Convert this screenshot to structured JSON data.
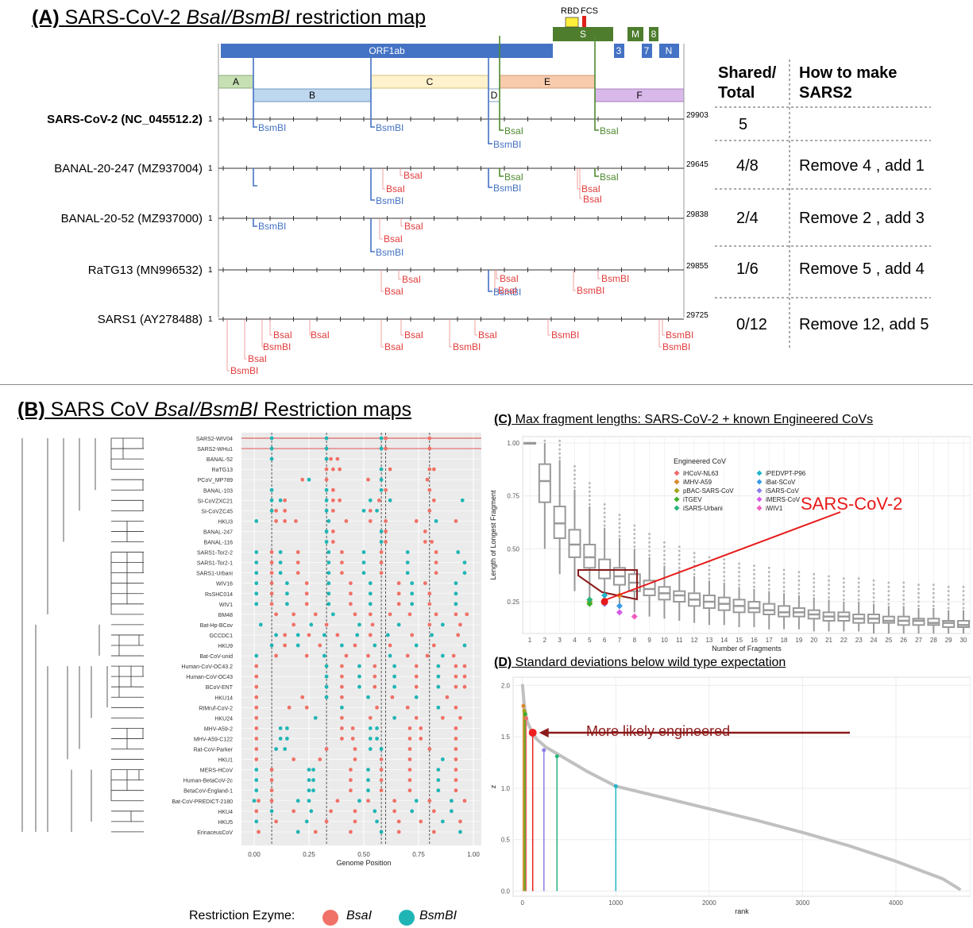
{
  "panel_a": {
    "title_label": "(A)",
    "title_pre": "SARS-CoV-2",
    "title_italic": "BsaI/BsmBI",
    "title_post": "restriction map",
    "genes": {
      "rbd": "RBD",
      "fcs": "FCS",
      "orf1ab": "ORF1ab",
      "s": "S",
      "m": "M",
      "n8": "8",
      "n3": "3",
      "n7": "7",
      "n": "N"
    },
    "fragments": [
      "A",
      "B",
      "C",
      "D",
      "E",
      "F"
    ],
    "genomes": [
      {
        "name": "SARS-CoV-2 (NC_045512.2)",
        "start": "1",
        "end": "29903"
      },
      {
        "name": "BANAL-20-247 (MZ937004)",
        "start": "1",
        "end": "29645"
      },
      {
        "name": "BANAL-20-52 (MZ937000)",
        "start": "1",
        "end": "29838"
      },
      {
        "name": "RaTG13  (MN996532)",
        "start": "1",
        "end": "29855"
      },
      {
        "name": "SARS1  (AY278488)",
        "start": "1",
        "end": "29725"
      }
    ],
    "enzymes": {
      "bsai": "BsaI",
      "bsmbi": "BsmBI"
    },
    "table_header_1": "Shared/ Total",
    "table_header_2": "How to make SARS2",
    "table_rows": [
      {
        "shared": "5",
        "how": ""
      },
      {
        "shared": "4/8",
        "how": "Remove 4 , add 1"
      },
      {
        "shared": "2/4",
        "how": "Remove 2 , add 3"
      },
      {
        "shared": "1/6",
        "how": "Remove 5 , add 4"
      },
      {
        "shared": "0/12",
        "how": "Remove 12, add 5"
      }
    ]
  },
  "panel_b": {
    "title_label": "(B)",
    "title_pre": "SARS CoV",
    "title_italic": "BsaI/BsmBI",
    "title_post": "Restriction maps",
    "taxa": [
      "SARS2-WIV04",
      "SARS2-WHu1",
      "BANAL-52",
      "RaTG13",
      "PCoV_MP789",
      "BANAL-103",
      "SI-CoVZXC21",
      "SI-CoVZC45",
      "HKU3",
      "BANAL-247",
      "BANAL-116",
      "SARS1-Tor2-2",
      "SARS1-Tor2-1",
      "SARS1-Urbani",
      "WIV16",
      "RsSHC014",
      "WIV1",
      "BM48",
      "Bat-Hp-BCov",
      "GCCDC1",
      "HKU9",
      "Bat-CoV-unid",
      "Human-CoV-OC43.2",
      "Human-CoV-OC43",
      "BCoV-ENT",
      "HKU14",
      "RtMruf-CoV-2",
      "HKU24",
      "MHV-A59-2",
      "MHV-A59-C122",
      "Rat-CoV-Parker",
      "HKU1",
      "MERS-HCoV",
      "Human-BetaCoV-2c",
      "BetaCoV-England-1",
      "Bat-CoV-PREDICT-2180",
      "HKU4",
      "HKU5",
      "ErinaceusCoV"
    ],
    "x_ticks": [
      "0.00",
      "0.25",
      "0.50",
      "0.75",
      "1.00"
    ],
    "x_label": "Genome Position",
    "legend_title": "Restriction Ezyme:",
    "legend_bsai": "BsaI",
    "legend_bsmbi": "BsmBI",
    "colors": {
      "bsai": "#f07167",
      "bsmbi": "#1fb5b5"
    }
  },
  "chart_data": [
    {
      "type": "box",
      "title_label": "(C)",
      "title": "Max fragment lengths: SARS-CoV-2 + known Engineered CoVs",
      "xlabel": "Number of Fragments",
      "ylabel": "Length of Longest Fragment",
      "x_ticks": [
        "1",
        "2",
        "3",
        "4",
        "5",
        "6",
        "7",
        "8",
        "9",
        "10",
        "11",
        "12",
        "13",
        "14",
        "15",
        "16",
        "17",
        "18",
        "19",
        "20",
        "21",
        "22",
        "23",
        "24",
        "25",
        "26",
        "27",
        "28",
        "29",
        "30"
      ],
      "y_ticks": [
        "0.25",
        "0.50",
        "0.75",
        "1.00"
      ],
      "ylim": [
        0.1,
        1.03
      ],
      "medians": [
        1.0,
        0.82,
        0.62,
        0.52,
        0.46,
        0.4,
        0.37,
        0.34,
        0.31,
        0.29,
        0.28,
        0.26,
        0.25,
        0.24,
        0.23,
        0.22,
        0.21,
        0.2,
        0.2,
        0.19,
        0.18,
        0.18,
        0.17,
        0.17,
        0.16,
        0.16,
        0.16,
        0.15,
        0.15,
        0.14
      ],
      "q1": [
        1.0,
        0.72,
        0.55,
        0.46,
        0.41,
        0.36,
        0.33,
        0.3,
        0.28,
        0.26,
        0.25,
        0.23,
        0.22,
        0.21,
        0.2,
        0.2,
        0.19,
        0.18,
        0.18,
        0.17,
        0.16,
        0.16,
        0.15,
        0.15,
        0.15,
        0.14,
        0.14,
        0.14,
        0.13,
        0.13
      ],
      "q3": [
        1.0,
        0.9,
        0.7,
        0.59,
        0.52,
        0.45,
        0.41,
        0.38,
        0.35,
        0.32,
        0.3,
        0.29,
        0.28,
        0.27,
        0.26,
        0.25,
        0.24,
        0.23,
        0.22,
        0.21,
        0.2,
        0.2,
        0.19,
        0.19,
        0.18,
        0.18,
        0.17,
        0.17,
        0.16,
        0.16
      ],
      "whisker_low": [
        1.0,
        0.5,
        0.38,
        0.3,
        0.27,
        0.24,
        0.22,
        0.2,
        0.18,
        0.17,
        0.16,
        0.15,
        0.14,
        0.14,
        0.13,
        0.13,
        0.12,
        0.12,
        0.12,
        0.11,
        0.11,
        0.11,
        0.11,
        0.1,
        0.1,
        0.1,
        0.1,
        0.1,
        0.1,
        0.1
      ],
      "whisker_high": [
        1.0,
        1.0,
        0.92,
        0.78,
        0.7,
        0.6,
        0.55,
        0.5,
        0.46,
        0.42,
        0.4,
        0.37,
        0.35,
        0.34,
        0.32,
        0.31,
        0.3,
        0.29,
        0.28,
        0.27,
        0.26,
        0.25,
        0.25,
        0.24,
        0.23,
        0.23,
        0.22,
        0.22,
        0.21,
        0.21
      ],
      "legend_title": "Engineered CoV",
      "series": [
        {
          "name": "iHCoV-NL63",
          "color": "#f26c6c",
          "x": 6,
          "y": 0.26
        },
        {
          "name": "iMHV-A59",
          "color": "#d9892b",
          "x": 7,
          "y": 0.28
        },
        {
          "name": "pBAC-SARS-CoV",
          "color": "#a3a21a",
          "x": 5,
          "y": 0.25
        },
        {
          "name": "iTGEV",
          "color": "#3fae2a",
          "x": 5,
          "y": 0.24
        },
        {
          "name": "iSARS-Urbani",
          "color": "#27b57a",
          "x": 5,
          "y": 0.26
        },
        {
          "name": "iPEDVPT-P96",
          "color": "#22b5c9",
          "x": 6,
          "y": 0.28
        },
        {
          "name": "iBat-SCoV",
          "color": "#3a9be6",
          "x": 7,
          "y": 0.23
        },
        {
          "name": "iSARS-CoV",
          "color": "#8a7fe6",
          "x": 6,
          "y": 0.24
        },
        {
          "name": "iMERS-CoV",
          "color": "#d45ce6",
          "x": 7,
          "y": 0.2
        },
        {
          "name": "iWIV1",
          "color": "#ef5fbf",
          "x": 8,
          "y": 0.18
        }
      ],
      "highlight": {
        "name": "SARS-CoV-2",
        "x": 6,
        "y": 0.25
      }
    },
    {
      "type": "line",
      "title_label": "(D)",
      "title": "Standard deviations below wild type expectation",
      "xlabel": "rank",
      "ylabel": "z",
      "x_ticks": [
        "0",
        "1000",
        "2000",
        "3000",
        "4000"
      ],
      "y_ticks": [
        "0.0",
        "0.5",
        "1.0",
        "1.5",
        "2.0"
      ],
      "xlim": [
        -100,
        4800
      ],
      "ylim": [
        -0.05,
        2.08
      ],
      "curve_x": [
        1,
        20,
        50,
        100,
        150,
        250,
        400,
        700,
        1000,
        1500,
        2000,
        2500,
        3000,
        3500,
        4000,
        4500,
        4680
      ],
      "curve_y": [
        2.0,
        1.8,
        1.65,
        1.55,
        1.48,
        1.4,
        1.32,
        1.16,
        1.02,
        0.91,
        0.8,
        0.69,
        0.57,
        0.44,
        0.29,
        0.12,
        0.02
      ],
      "markers": [
        {
          "rank": 110,
          "z": 1.54,
          "color": "#ef1f1f"
        },
        {
          "rank": 10,
          "z": 1.8,
          "color": "#d9892b"
        },
        {
          "rank": 20,
          "z": 1.75,
          "color": "#a3a21a"
        },
        {
          "rank": 30,
          "z": 1.72,
          "color": "#3fae2a"
        },
        {
          "rank": 40,
          "z": 1.68,
          "color": "#f26c6c"
        },
        {
          "rank": 230,
          "z": 1.37,
          "color": "#8a7fe6"
        },
        {
          "rank": 370,
          "z": 1.31,
          "color": "#27b57a"
        },
        {
          "rank": 1000,
          "z": 1.02,
          "color": "#22b5c9"
        }
      ],
      "annotation": "More likely engineered"
    }
  ]
}
